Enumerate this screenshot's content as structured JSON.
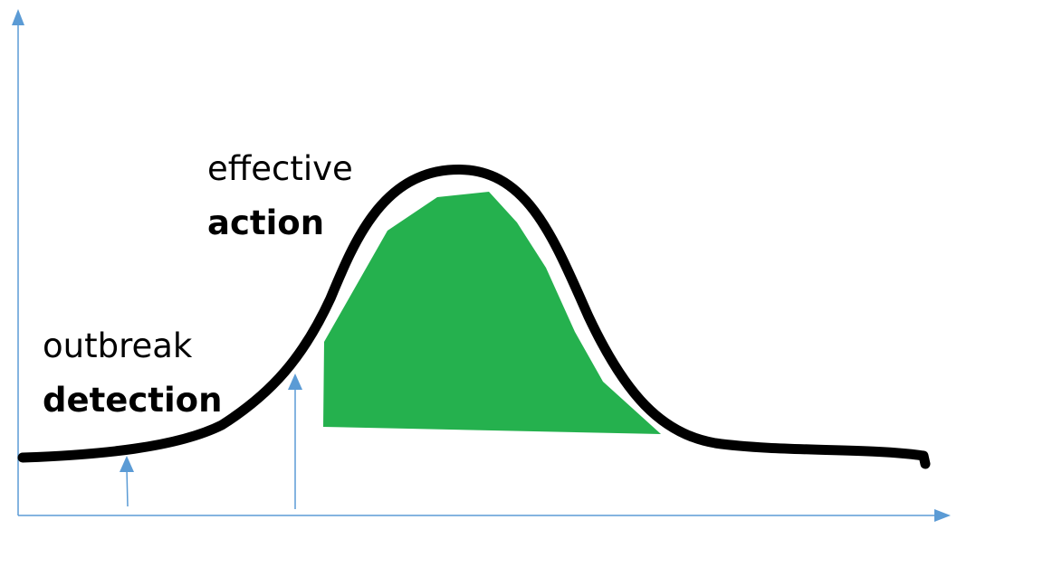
{
  "labels": {
    "effective_action": {
      "line1": "effective",
      "line2": "action"
    },
    "outbreak_detection": {
      "line1": "outbreak",
      "line2": "detection"
    }
  },
  "colors": {
    "curve": "#000000",
    "fill": "#25b14e",
    "axis": "#5b9bd5",
    "background": "#ffffff"
  }
}
